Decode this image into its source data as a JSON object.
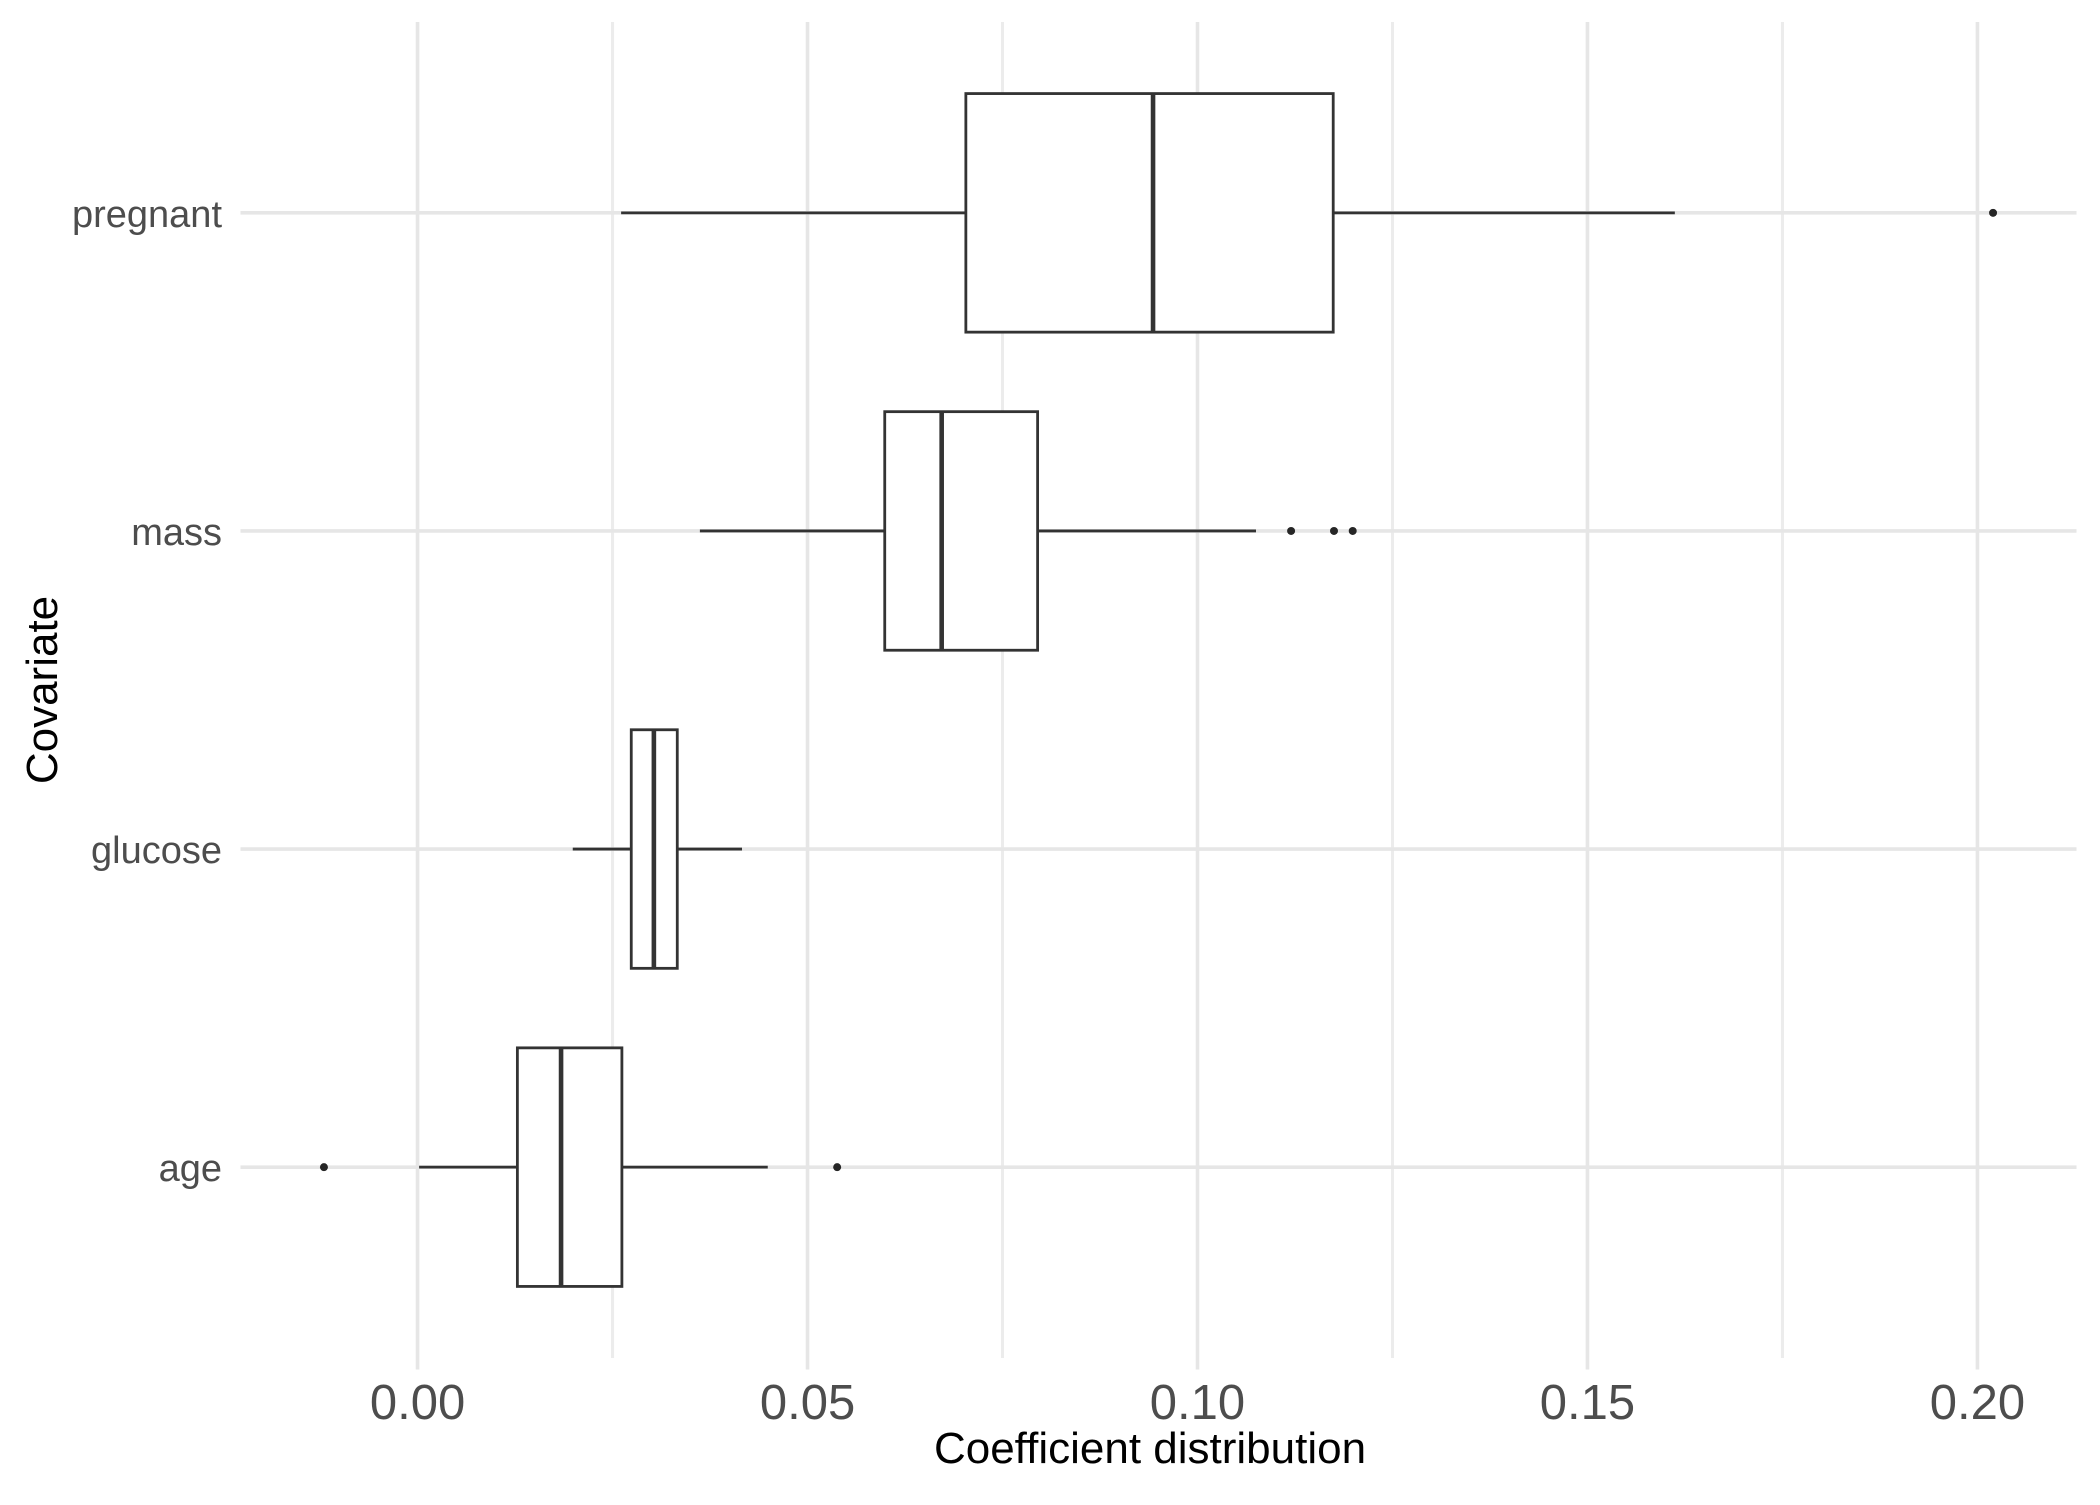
{
  "chart_data": {
    "type": "boxplot",
    "orientation": "horizontal",
    "title": "",
    "xlabel": "Coefficient distribution",
    "ylabel": "Covariate",
    "grid": true,
    "xlim": [
      -0.0227,
      0.2127
    ],
    "x_ticks": {
      "values": [
        0.0,
        0.05,
        0.1,
        0.15,
        0.2
      ],
      "labels": [
        "0.00",
        "0.05",
        "0.10",
        "0.15",
        "0.20"
      ]
    },
    "x_minor_gridlines": [
      0.025,
      0.075,
      0.125,
      0.175
    ],
    "categories_top_to_bottom": [
      "pregnant",
      "mass",
      "glucose",
      "age"
    ],
    "boxes": [
      {
        "label": "pregnant",
        "whisker_low": 0.0261,
        "q1": 0.0703,
        "median": 0.0943,
        "q3": 0.1174,
        "whisker_high": 0.1612,
        "outliers": [
          0.202
        ]
      },
      {
        "label": "mass",
        "whisker_low": 0.0362,
        "q1": 0.0599,
        "median": 0.0672,
        "q3": 0.0795,
        "whisker_high": 0.1075,
        "outliers": [
          0.112,
          0.1175,
          0.1199
        ]
      },
      {
        "label": "glucose",
        "whisker_low": 0.0199,
        "q1": 0.0274,
        "median": 0.0303,
        "q3": 0.0333,
        "whisker_high": 0.0416,
        "outliers": []
      },
      {
        "label": "age",
        "whisker_low": 0.0002,
        "q1": 0.0128,
        "median": 0.0184,
        "q3": 0.0262,
        "whisker_high": 0.0449,
        "outliers": [
          -0.012,
          0.0538
        ]
      }
    ],
    "colors": {
      "background": "#ffffff",
      "box_stroke": "#333333",
      "box_fill": "#ffffff",
      "median": "#333333",
      "outlier": "#262626",
      "grid_major": "#e6e6e6",
      "grid_minor": "#ececec",
      "tick_label": "#4d4d4d",
      "axis_title": "#000000"
    }
  }
}
